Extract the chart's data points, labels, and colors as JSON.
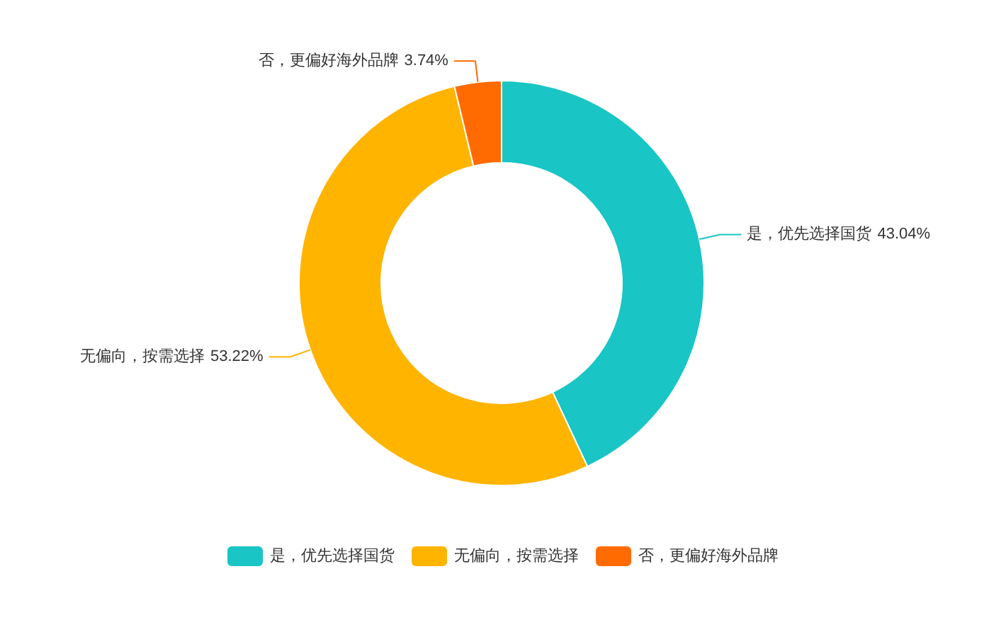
{
  "chart_data": {
    "type": "donut",
    "categories": [
      "是，优先选择国货",
      "无偏向，按需选择",
      "否，更偏好海外品牌"
    ],
    "values": [
      43.04,
      53.22,
      3.74
    ],
    "value_labels": [
      "43.04%",
      "53.22%",
      "3.74%"
    ],
    "colors": [
      "#19c5c5",
      "#ffb400",
      "#ff6b00"
    ],
    "legend": "bottom"
  }
}
